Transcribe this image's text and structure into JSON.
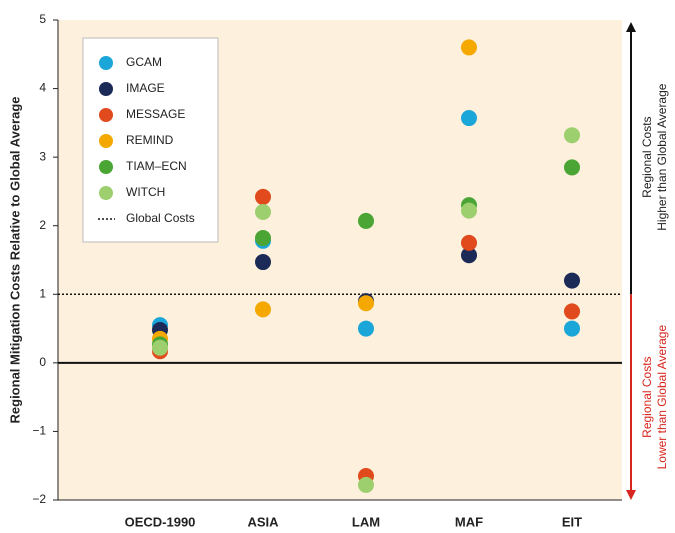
{
  "chart_data": {
    "type": "dot",
    "y_label": "Regional Mitigation Costs Relative to Global Average",
    "categories": [
      "OECD-1990",
      "ASIA",
      "LAM",
      "MAF",
      "EIT"
    ],
    "series": [
      {
        "name": "GCAM",
        "color": "#1aa6d8",
        "values": [
          0.55,
          1.78,
          0.5,
          3.57,
          0.5
        ]
      },
      {
        "name": "IMAGE",
        "color": "#1b2a56",
        "values": [
          0.48,
          1.47,
          0.9,
          1.57,
          1.2
        ]
      },
      {
        "name": "MESSAGE",
        "color": "#e04a1c",
        "values": [
          0.17,
          2.42,
          -1.65,
          1.75,
          0.75
        ]
      },
      {
        "name": "REMIND",
        "color": "#f5a800",
        "values": [
          0.35,
          0.78,
          0.87,
          4.6,
          null
        ]
      },
      {
        "name": "TIAM–ECN",
        "color": "#4aa534",
        "values": [
          0.27,
          1.82,
          2.07,
          2.3,
          2.85
        ]
      },
      {
        "name": "WITCH",
        "color": "#9ecf6e",
        "values": [
          0.22,
          2.2,
          -1.78,
          2.22,
          3.32
        ]
      }
    ],
    "global_costs": {
      "label": "Global Costs",
      "value": 1
    },
    "upper_label": [
      "Regional Costs",
      "Higher than Global Average"
    ],
    "lower_label": [
      "Regional Costs",
      "Lower than Global Average"
    ],
    "ylim": [
      -2,
      5
    ],
    "yticks": [
      {
        "value": -2,
        "label": "−2"
      },
      {
        "value": -1,
        "label": "−1"
      },
      0,
      1,
      2,
      3,
      4,
      5
    ]
  }
}
